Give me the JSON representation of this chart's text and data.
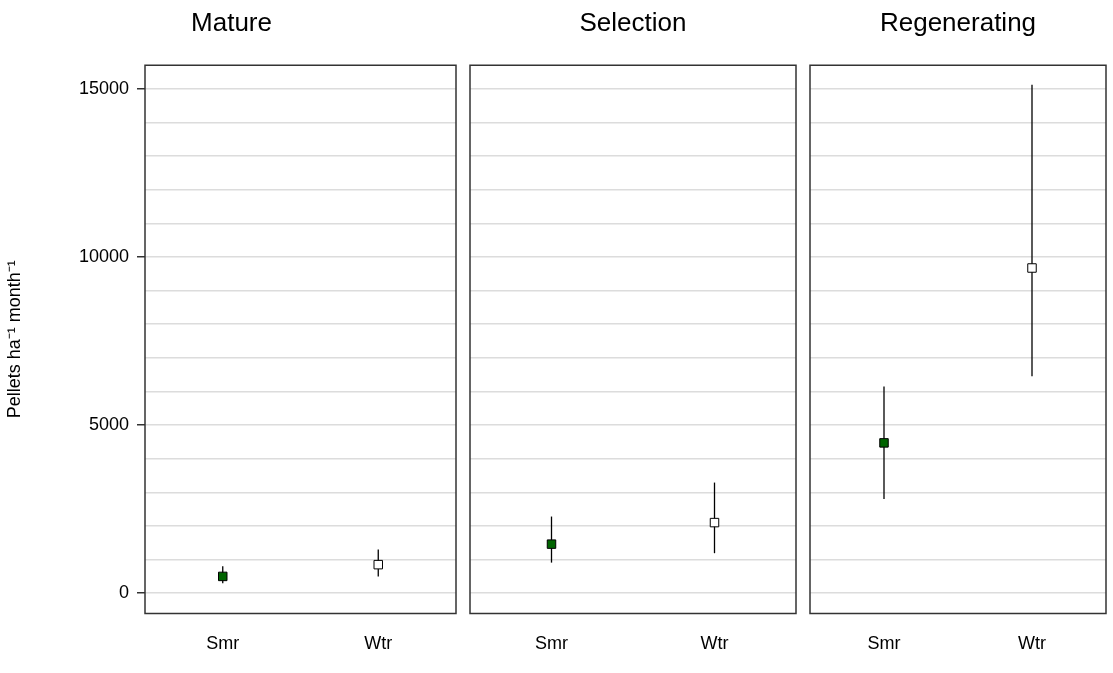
{
  "chart_data": [
    {
      "type": "scatter",
      "title": "Mature",
      "ylabel": "Pellets ha⁻¹ month⁻¹",
      "categories": [
        "Smr",
        "Wtr"
      ],
      "values": [
        500,
        850
      ],
      "colors": [
        "#006400",
        "#ffffff"
      ],
      "errors": [
        [
          300,
          800
        ],
        [
          500,
          1300
        ]
      ],
      "ylim": [
        -600,
        15700
      ],
      "yticks": [
        0,
        {
          "value": 1000,
          "label": null
        },
        {
          "value": 2000,
          "label": null
        },
        {
          "value": 3000,
          "label": null
        },
        {
          "value": 4000,
          "label": null
        },
        5000,
        {
          "value": 6000,
          "label": null
        },
        {
          "value": 7000,
          "label": null
        },
        {
          "value": 8000,
          "label": null
        },
        {
          "value": 9000,
          "label": null
        },
        10000,
        {
          "value": 11000,
          "label": null
        },
        {
          "value": 12000,
          "label": null
        },
        {
          "value": 13000,
          "label": null
        },
        {
          "value": 14000,
          "label": null
        },
        15000
      ],
      "grid": "y",
      "marker": "square"
    },
    {
      "type": "scatter",
      "title": "Selection",
      "categories": [
        "Smr",
        "Wtr"
      ],
      "values": [
        1460,
        2100
      ],
      "colors": [
        "#006400",
        "#ffffff"
      ],
      "errors": [
        [
          910,
          2280
        ],
        [
          1190,
          3290
        ]
      ],
      "ylim": [
        -600,
        15700
      ],
      "yticks": [
        0,
        {
          "value": 1000,
          "label": null
        },
        {
          "value": 2000,
          "label": null
        },
        {
          "value": 3000,
          "label": null
        },
        {
          "value": 4000,
          "label": null
        },
        5000,
        {
          "value": 6000,
          "label": null
        },
        {
          "value": 7000,
          "label": null
        },
        {
          "value": 8000,
          "label": null
        },
        {
          "value": 9000,
          "label": null
        },
        10000,
        {
          "value": 11000,
          "label": null
        },
        {
          "value": 12000,
          "label": null
        },
        {
          "value": 13000,
          "label": null
        },
        {
          "value": 14000,
          "label": null
        },
        15000
      ],
      "grid": "y",
      "marker": "square",
      "tick_labels": "x"
    },
    {
      "type": "scatter",
      "title": "Regenerating",
      "categories": [
        "Smr",
        "Wtr"
      ],
      "values": [
        4470,
        9670
      ],
      "colors": [
        "#006400",
        "#ffffff"
      ],
      "errors": [
        [
          2800,
          6150
        ],
        [
          6450,
          15120
        ]
      ],
      "ylim": [
        -600,
        15700
      ],
      "yticks": [
        0,
        {
          "value": 1000,
          "label": null
        },
        {
          "value": 2000,
          "label": null
        },
        {
          "value": 3000,
          "label": null
        },
        {
          "value": 4000,
          "label": null
        },
        5000,
        {
          "value": 6000,
          "label": null
        },
        {
          "value": 7000,
          "label": null
        },
        {
          "value": 8000,
          "label": null
        },
        {
          "value": 9000,
          "label": null
        },
        10000,
        {
          "value": 11000,
          "label": null
        },
        {
          "value": 12000,
          "label": null
        },
        {
          "value": 13000,
          "label": null
        },
        {
          "value": 14000,
          "label": null
        },
        15000
      ],
      "grid": "y",
      "marker": "square",
      "tick_labels": "x"
    }
  ]
}
